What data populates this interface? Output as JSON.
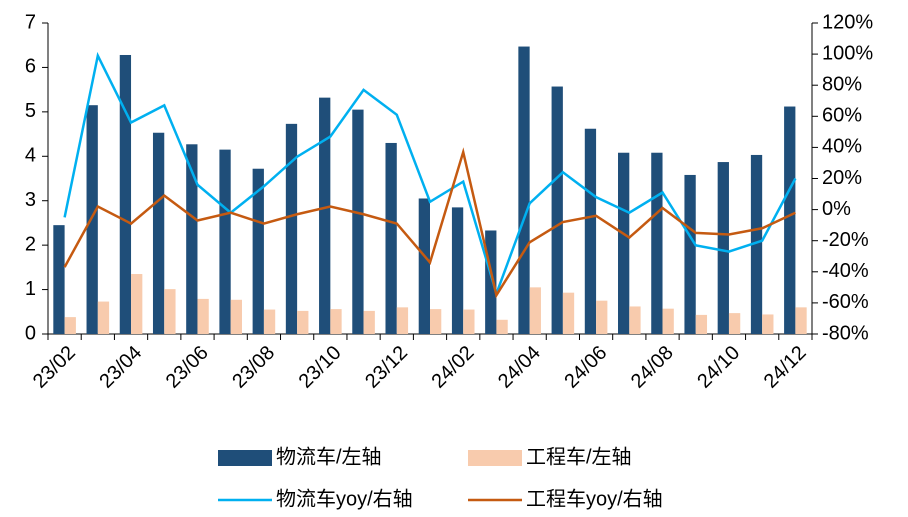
{
  "chart_data": {
    "type": "bar-line",
    "categories": [
      "23/02",
      null,
      "23/04",
      null,
      "23/06",
      null,
      "23/08",
      null,
      "23/10",
      null,
      "23/12",
      null,
      "24/02",
      null,
      "24/04",
      null,
      "24/06",
      null,
      "24/08",
      null,
      "24/10",
      null,
      "24/12"
    ],
    "series": [
      {
        "name": "物流车/左轴",
        "type": "bar",
        "color": "#1f4e79",
        "values": [
          2.45,
          5.15,
          6.28,
          4.53,
          4.27,
          4.15,
          3.72,
          4.73,
          5.32,
          5.05,
          4.3,
          3.05,
          2.85,
          2.33,
          6.47,
          5.57,
          4.62,
          4.08,
          4.08,
          3.58,
          3.87,
          4.03,
          5.12
        ]
      },
      {
        "name": "工程车/左轴",
        "type": "bar",
        "color": "#f8cbad",
        "values": [
          0.38,
          0.73,
          1.35,
          1.01,
          0.79,
          0.77,
          0.55,
          0.52,
          0.56,
          0.52,
          0.6,
          0.56,
          0.55,
          0.32,
          1.05,
          0.93,
          0.75,
          0.62,
          0.57,
          0.43,
          0.47,
          0.44,
          0.6
        ]
      },
      {
        "name": "物流车yoy/右轴",
        "type": "line",
        "axis": "y2",
        "color": "#00b0f0",
        "values": [
          -5,
          99,
          56,
          67,
          16,
          -2,
          15,
          34,
          47,
          77,
          61,
          5,
          18,
          -54,
          4,
          24,
          8,
          -2,
          11,
          -23,
          -27,
          -20,
          20
        ]
      },
      {
        "name": "工程车yoy/右轴",
        "type": "line",
        "axis": "y2",
        "color": "#c55a11",
        "values": [
          -37,
          2,
          -9,
          9,
          -7,
          -2,
          -9,
          -3,
          2,
          -3,
          -9,
          -34,
          37,
          -55,
          -21,
          -8,
          -4,
          -18,
          1,
          -15,
          -16,
          -12,
          -2
        ]
      }
    ],
    "ylim": [
      0,
      7
    ],
    "yticks": [
      0,
      1,
      2,
      3,
      4,
      5,
      6,
      7
    ],
    "y2lim": [
      -80,
      120
    ],
    "y2ticks": [
      {
        "value": -80,
        "label": "-80%"
      },
      {
        "value": -60,
        "label": "-60%"
      },
      {
        "value": -40,
        "label": "-40%"
      },
      {
        "value": -20,
        "label": "-20%"
      },
      {
        "value": 0,
        "label": "0%"
      },
      {
        "value": 20,
        "label": "20%"
      },
      {
        "value": 40,
        "label": "40%"
      },
      {
        "value": 60,
        "label": "60%"
      },
      {
        "value": 80,
        "label": "80%"
      },
      {
        "value": 100,
        "label": "100%"
      },
      {
        "value": 120,
        "label": "120%"
      }
    ],
    "legend": "bottom"
  }
}
